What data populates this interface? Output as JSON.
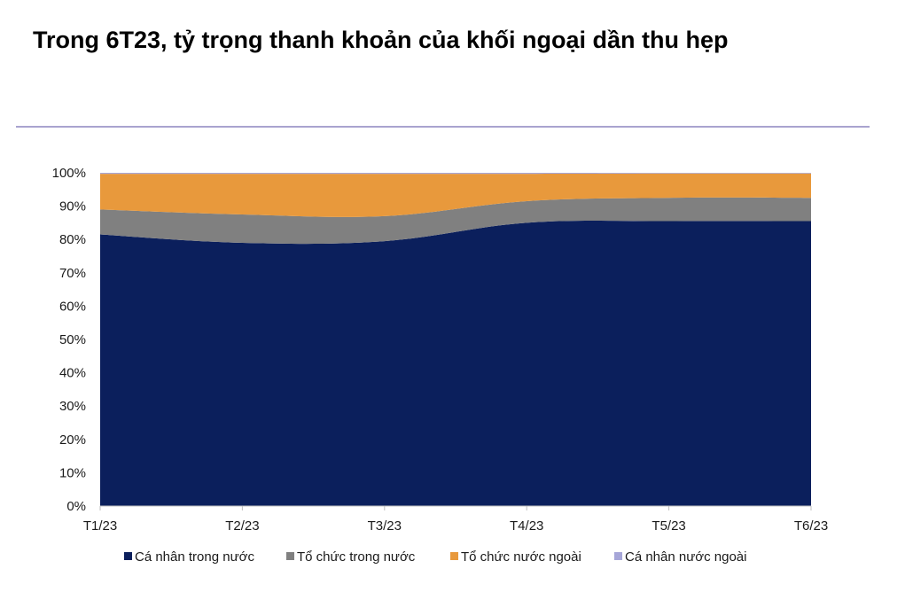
{
  "title": "Trong 6T23, tỷ trọng thanh khoản của khối ngoại dần thu hẹp",
  "chart_data": {
    "type": "area",
    "stacked": true,
    "categories": [
      "T1/23",
      "T2/23",
      "T3/23",
      "T4/23",
      "T5/23",
      "T6/23"
    ],
    "ylim": [
      0,
      100
    ],
    "yticks": [
      "0%",
      "10%",
      "20%",
      "30%",
      "40%",
      "50%",
      "60%",
      "70%",
      "80%",
      "90%",
      "100%"
    ],
    "legend_position": "bottom",
    "grid": false,
    "series": [
      {
        "name": "Cá nhân trong nước",
        "color": "#0b1f5c",
        "values": [
          81.5,
          79.0,
          79.5,
          85.0,
          85.5,
          85.5
        ]
      },
      {
        "name": "Tổ chức trong nước",
        "color": "#808080",
        "values": [
          7.5,
          8.5,
          7.5,
          6.5,
          7.0,
          7.0
        ]
      },
      {
        "name": "Tổ chức nước ngoài",
        "color": "#e8993c",
        "values": [
          10.7,
          12.2,
          12.7,
          8.2,
          7.3,
          7.3
        ]
      },
      {
        "name": "Cá nhân nước ngoài",
        "color": "#a6a6d8",
        "values": [
          0.3,
          0.3,
          0.3,
          0.3,
          0.2,
          0.2
        ]
      }
    ]
  }
}
